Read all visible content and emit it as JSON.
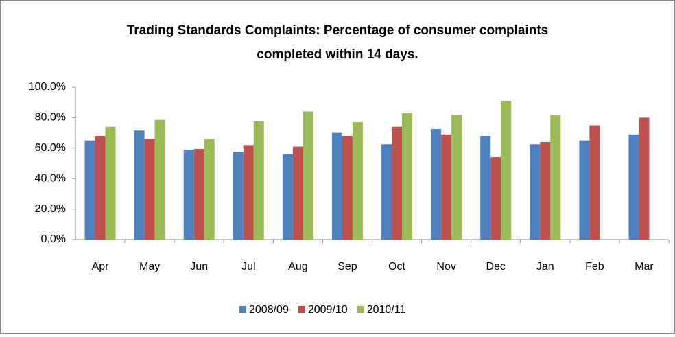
{
  "chart_data": {
    "type": "bar",
    "title": [
      "Trading Standards Complaints: Percentage of consumer complaints",
      "completed within 14 days."
    ],
    "categories": [
      "Apr",
      "May",
      "Jun",
      "Jul",
      "Aug",
      "Sep",
      "Oct",
      "Nov",
      "Dec",
      "Jan",
      "Feb",
      "Mar"
    ],
    "series": [
      {
        "name": "2008/09",
        "color": "#4f81bd",
        "values": [
          65,
          71.5,
          59,
          57.5,
          56,
          70,
          62.5,
          72.5,
          68,
          62.5,
          65,
          69
        ]
      },
      {
        "name": "2009/10",
        "color": "#c0504d",
        "values": [
          68,
          66,
          59.5,
          62,
          61,
          68,
          74,
          69,
          54,
          64,
          75,
          80
        ]
      },
      {
        "name": "2010/11",
        "color": "#9bbb59",
        "values": [
          74,
          78.5,
          66,
          77.5,
          84,
          77,
          83,
          82,
          91,
          81.5,
          null,
          null
        ]
      }
    ],
    "ylim": [
      0,
      100
    ],
    "yticks": [
      {
        "value": 0,
        "label": "0.0%"
      },
      {
        "value": 20,
        "label": "20.0%"
      },
      {
        "value": 40,
        "label": "40.0%"
      },
      {
        "value": 60,
        "label": "60.0%"
      },
      {
        "value": 80,
        "label": "80.0%"
      },
      {
        "value": 100,
        "label": "100.0%"
      }
    ],
    "grid": false,
    "legend": "bottom"
  }
}
